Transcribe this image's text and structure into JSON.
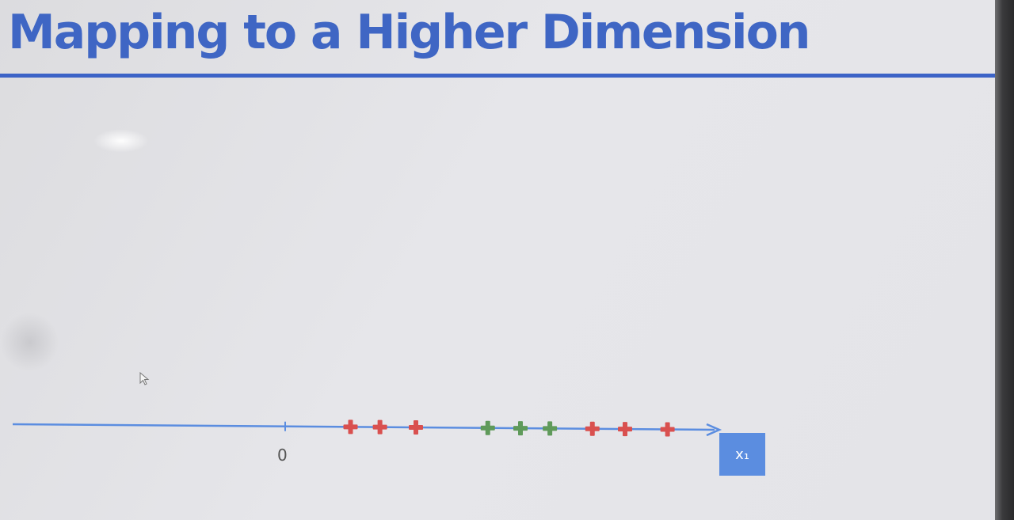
{
  "slide": {
    "title": "Mapping to a Higher Dimension"
  },
  "axis": {
    "origin_label": "0",
    "axis_label": "x₁",
    "line_color": "#5b8de0"
  },
  "colors": {
    "title": "#3f66c4",
    "negative_class": "#d9504f",
    "positive_class": "#5f9a5a"
  },
  "chart_data": {
    "type": "scatter",
    "title": "",
    "xlabel": "x₁",
    "ylabel": "",
    "points": [
      {
        "x": 1.0,
        "class": "red"
      },
      {
        "x": 1.45,
        "class": "red"
      },
      {
        "x": 2.0,
        "class": "red"
      },
      {
        "x": 3.1,
        "class": "green"
      },
      {
        "x": 3.6,
        "class": "green"
      },
      {
        "x": 4.05,
        "class": "green"
      },
      {
        "x": 4.7,
        "class": "red"
      },
      {
        "x": 5.2,
        "class": "red"
      },
      {
        "x": 5.85,
        "class": "red"
      }
    ]
  }
}
